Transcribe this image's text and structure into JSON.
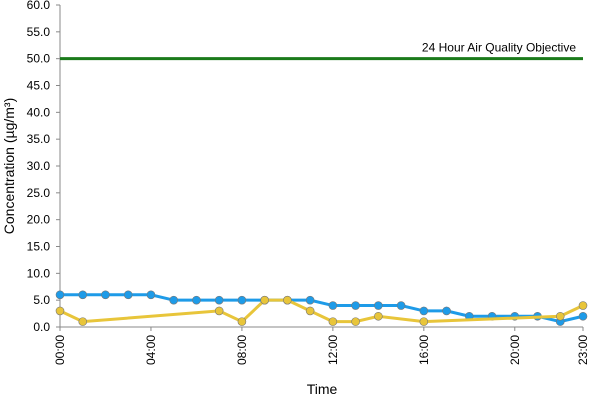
{
  "chart_data": {
    "type": "line",
    "x_label": "Time",
    "y_label": "Concentration (µg/m³)",
    "xlim": [
      0,
      23
    ],
    "xticks": [
      {
        "value": 0,
        "label": "00:00"
      },
      {
        "value": 4,
        "label": "04:00"
      },
      {
        "value": 8,
        "label": "08:00"
      },
      {
        "value": 12,
        "label": "12:00"
      },
      {
        "value": 16,
        "label": "16:00"
      },
      {
        "value": 20,
        "label": "20:00"
      },
      {
        "value": 23,
        "label": "23:00"
      }
    ],
    "ylim": [
      0,
      60
    ],
    "yticks": [
      {
        "value": 0,
        "label": "0.0"
      },
      {
        "value": 5,
        "label": "5.0"
      },
      {
        "value": 10,
        "label": "10.0"
      },
      {
        "value": 15,
        "label": "15.0"
      },
      {
        "value": 20,
        "label": "20.0"
      },
      {
        "value": 25,
        "label": "25.0"
      },
      {
        "value": 30,
        "label": "30.0"
      },
      {
        "value": 35,
        "label": "35.0"
      },
      {
        "value": 40,
        "label": "40.0"
      },
      {
        "value": 45,
        "label": "45.0"
      },
      {
        "value": 50,
        "label": "50.0"
      },
      {
        "value": 55,
        "label": "55.0"
      },
      {
        "value": 60,
        "label": "60.0"
      }
    ],
    "reference": {
      "value": 50,
      "label": "24 Hour Air Quality Objective",
      "color": "#1a7a1a"
    },
    "series": [
      {
        "color": "#1e9be8",
        "x": [
          0,
          1,
          2,
          3,
          4,
          5,
          6,
          7,
          8,
          9,
          10,
          11,
          12,
          13,
          14,
          15,
          16,
          17,
          18,
          19,
          20,
          21,
          22,
          23
        ],
        "values": [
          6,
          6,
          6,
          6,
          6,
          5,
          5,
          5,
          5,
          5,
          5,
          5,
          4,
          4,
          4,
          4,
          3,
          3,
          2,
          2,
          2,
          2,
          1,
          2
        ]
      },
      {
        "color": "#e8c53a",
        "x": [
          0,
          1,
          7,
          8,
          9,
          10,
          11,
          12,
          13,
          14,
          16,
          22,
          23
        ],
        "values": [
          3,
          1,
          3,
          1,
          5,
          5,
          3,
          1,
          1,
          2,
          1,
          2,
          4
        ]
      }
    ]
  }
}
